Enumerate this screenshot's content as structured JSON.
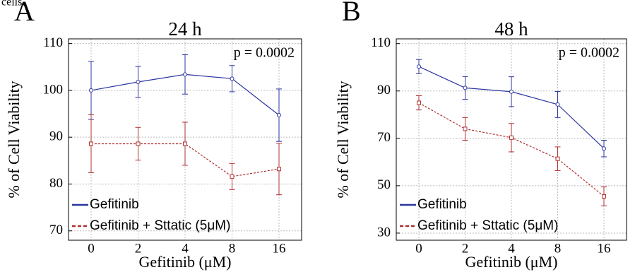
{
  "caption": "cells.",
  "chart_data": [
    {
      "type": "line",
      "panel_label": "A",
      "title": "24 h",
      "x_label": "Gefitinib (μM)",
      "y_label": "% of Cell Viability",
      "annotation": "p = 0.0002",
      "categories": [
        "0",
        "2",
        "4",
        "8",
        "16"
      ],
      "ylim": [
        68,
        111
      ],
      "yticks": [
        70,
        80,
        90,
        100,
        110
      ],
      "grid": true,
      "legend": "lower left",
      "series": [
        {
          "name": "Gefitinib",
          "color": "#2b35a0",
          "dash": false,
          "marker": "circle",
          "values": [
            100,
            101.8,
            103.4,
            102.5,
            94.7
          ],
          "errors": [
            6.2,
            3.3,
            4.2,
            2.8,
            5.6
          ]
        },
        {
          "name": "Gefitinib + Sttatic (5μM)",
          "color": "#b03030",
          "dash": true,
          "marker": "square",
          "values": [
            88.6,
            88.6,
            88.6,
            81.6,
            83.2
          ],
          "errors": [
            6.2,
            3.5,
            4.6,
            2.8,
            5.5
          ]
        }
      ]
    },
    {
      "type": "line",
      "panel_label": "B",
      "title": "48 h",
      "x_label": "Gefitinib (μM)",
      "y_label": "% of Cell Viability",
      "annotation": "p = 0.0002",
      "categories": [
        "0",
        "2",
        "4",
        "8",
        "16"
      ],
      "ylim": [
        27,
        112
      ],
      "yticks": [
        30,
        50,
        70,
        90,
        110
      ],
      "grid": true,
      "legend": "lower left",
      "series": [
        {
          "name": "Gefitinib",
          "color": "#2b35a0",
          "dash": false,
          "marker": "circle",
          "values": [
            100.3,
            91.3,
            89.7,
            84.3,
            65.7
          ],
          "errors": [
            3,
            4.8,
            6.3,
            5.5,
            3.5
          ]
        },
        {
          "name": "Gefitinib + Sttatic (5μM)",
          "color": "#b03030",
          "dash": true,
          "marker": "square",
          "values": [
            85,
            74,
            70.3,
            61.4,
            45.5
          ],
          "errors": [
            3,
            4.8,
            6,
            5,
            4
          ]
        }
      ]
    }
  ]
}
